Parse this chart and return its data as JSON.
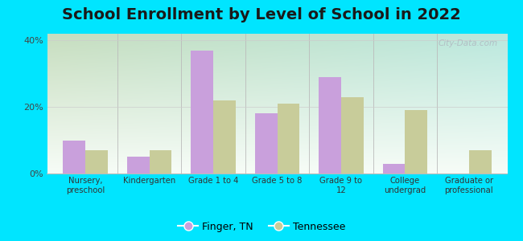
{
  "title": "School Enrollment by Level of School in 2022",
  "categories": [
    "Nursery,\npreschool",
    "Kindergarten",
    "Grade 1 to 4",
    "Grade 5 to 8",
    "Grade 9 to\n12",
    "College\nundergrad",
    "Graduate or\nprofessional"
  ],
  "finger_tn": [
    10,
    5,
    37,
    18,
    29,
    3,
    0
  ],
  "tennessee": [
    7,
    7,
    22,
    21,
    23,
    19,
    7
  ],
  "finger_color": "#c9a0dc",
  "tennessee_color": "#c8cc9a",
  "bg_outer": "#00e5ff",
  "bg_plot_left": "#d0e8c8",
  "bg_plot_right": "#e8f5f8",
  "bg_plot_bottom": "#f5faf5",
  "ylim": [
    0,
    42
  ],
  "yticks": [
    0,
    20,
    40
  ],
  "ytick_labels": [
    "0%",
    "20%",
    "40%"
  ],
  "title_fontsize": 14,
  "legend_labels": [
    "Finger, TN",
    "Tennessee"
  ],
  "watermark": "City-Data.com",
  "bar_width": 0.35
}
